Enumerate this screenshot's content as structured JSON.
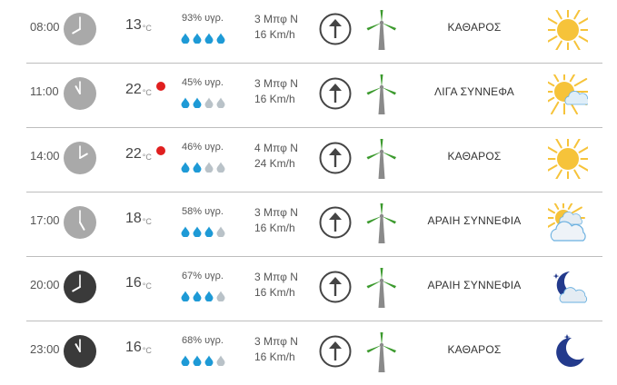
{
  "rows": [
    {
      "time": "08:00",
      "night": false,
      "clock_hour": 8,
      "temp": "13",
      "temp_unit": "°C",
      "hot": false,
      "humidity": "93% υγρ.",
      "drops_full": 4,
      "wind_force": "3 Μπφ N",
      "wind_speed": "16 Km/h",
      "description": "ΚΑΘΑΡΟΣ",
      "icon": "sun-icon"
    },
    {
      "time": "11:00",
      "night": false,
      "clock_hour": 11,
      "temp": "22",
      "temp_unit": "°C",
      "hot": true,
      "humidity": "45% υγρ.",
      "drops_full": 2,
      "wind_force": "3 Μπφ N",
      "wind_speed": "16 Km/h",
      "description": "ΛΙΓΑ ΣΥΝΝΕΦΑ",
      "icon": "sun-cloud-icon"
    },
    {
      "time": "14:00",
      "night": false,
      "clock_hour": 2,
      "temp": "22",
      "temp_unit": "°C",
      "hot": true,
      "humidity": "46% υγρ.",
      "drops_full": 2,
      "wind_force": "4 Μπφ N",
      "wind_speed": "24 Km/h",
      "description": "ΚΑΘΑΡΟΣ",
      "icon": "sun-icon"
    },
    {
      "time": "17:00",
      "night": false,
      "clock_hour": 5,
      "temp": "18",
      "temp_unit": "°C",
      "hot": false,
      "humidity": "58% υγρ.",
      "drops_full": 3,
      "wind_force": "3 Μπφ N",
      "wind_speed": "16 Km/h",
      "description": "ΑΡΑΙΗ ΣΥΝΝΕΦΙΑ",
      "icon": "cloudy-sun-icon"
    },
    {
      "time": "20:00",
      "night": true,
      "clock_hour": 8,
      "temp": "16",
      "temp_unit": "°C",
      "hot": false,
      "humidity": "67% υγρ.",
      "drops_full": 3,
      "wind_force": "3 Μπφ N",
      "wind_speed": "16 Km/h",
      "description": "ΑΡΑΙΗ ΣΥΝΝΕΦΙΑ",
      "icon": "moon-cloud-icon"
    },
    {
      "time": "23:00",
      "night": true,
      "clock_hour": 11,
      "temp": "16",
      "temp_unit": "°C",
      "hot": false,
      "humidity": "68% υγρ.",
      "drops_full": 3,
      "wind_force": "3 Μπφ N",
      "wind_speed": "16 Km/h",
      "description": "ΚΑΘΑΡΟΣ",
      "icon": "moon-icon"
    }
  ],
  "colors": {
    "clock_day": "#a9a9a9",
    "clock_night": "#3a3a3a",
    "hot_dot": "#e01f1f",
    "drop_full": "#1e9ad6",
    "drop_empty": "#b9c2c8",
    "sun": "#f6c33a",
    "cloud": "#dfe9f2",
    "moon": "#233a8c",
    "turbine_blade": "#3c9a2e",
    "turbine_tower": "#8a8a8a"
  }
}
